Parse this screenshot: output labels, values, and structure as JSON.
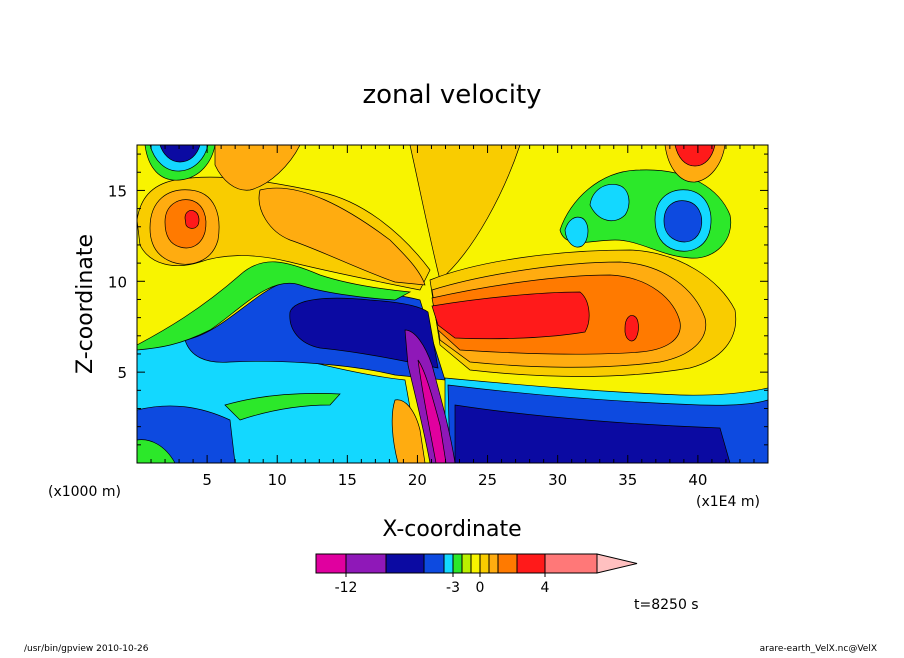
{
  "chart_data": {
    "type": "heatmap",
    "title": "zonal velocity",
    "xlabel": "X-coordinate",
    "ylabel": "Z-coordinate",
    "x_unit": "(x1E4 m)",
    "y_unit": "(x1000 m)",
    "xlim": [
      0,
      45
    ],
    "ylim": [
      0,
      17.5
    ],
    "x_ticks": [
      5,
      10,
      15,
      20,
      25,
      30,
      35,
      40
    ],
    "y_ticks": [
      5,
      10,
      15
    ],
    "grid": false,
    "colorbar": {
      "levels": [
        -15,
        -12,
        -9,
        -6,
        -4,
        -3,
        -2,
        -1,
        0,
        1,
        2,
        3,
        4,
        6,
        9,
        12
      ],
      "tick_labels": [
        "-12",
        "-3",
        "0",
        "4"
      ],
      "tick_values": [
        -12,
        -3,
        0,
        4
      ],
      "colors": [
        "#e0009f",
        "#8f18b8",
        "#0b0aa2",
        "#0d4ae0",
        "#13d8ff",
        "#2ce82a",
        "#baf000",
        "#f8f400",
        "#f9cc00",
        "#ffac10",
        "#ff7a00",
        "#ff1a1a",
        "#ff7878"
      ],
      "extend_color": "#ffc0c0",
      "placement": "bottom"
    },
    "time_label": "t=8250 s"
  },
  "footer": {
    "left": "/usr/bin/gpview   2010-10-26",
    "right": "arare-earth_VelX.nc@VelX"
  }
}
